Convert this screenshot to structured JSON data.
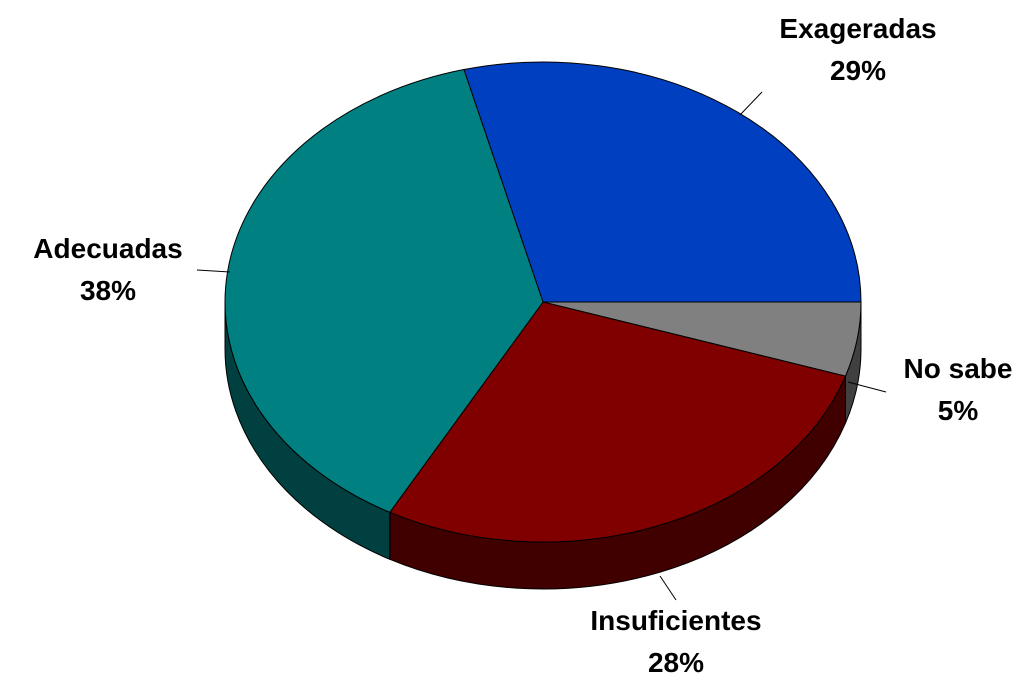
{
  "chart_data": {
    "type": "pie",
    "title": "",
    "slices": [
      {
        "label": "Exageradas",
        "value": 29,
        "pct_label": "29%",
        "color": "#0040C0",
        "side_color": "#002A80"
      },
      {
        "label": "No sabe",
        "value": 5,
        "pct_label": "5%",
        "color": "#808080",
        "side_color": "#404040"
      },
      {
        "label": "Insuficientes",
        "value": 28,
        "pct_label": "28%",
        "color": "#800000",
        "side_color": "#400000"
      },
      {
        "label": "Adecuadas",
        "value": 38,
        "pct_label": "38%",
        "color": "#008080",
        "side_color": "#004040"
      }
    ]
  }
}
